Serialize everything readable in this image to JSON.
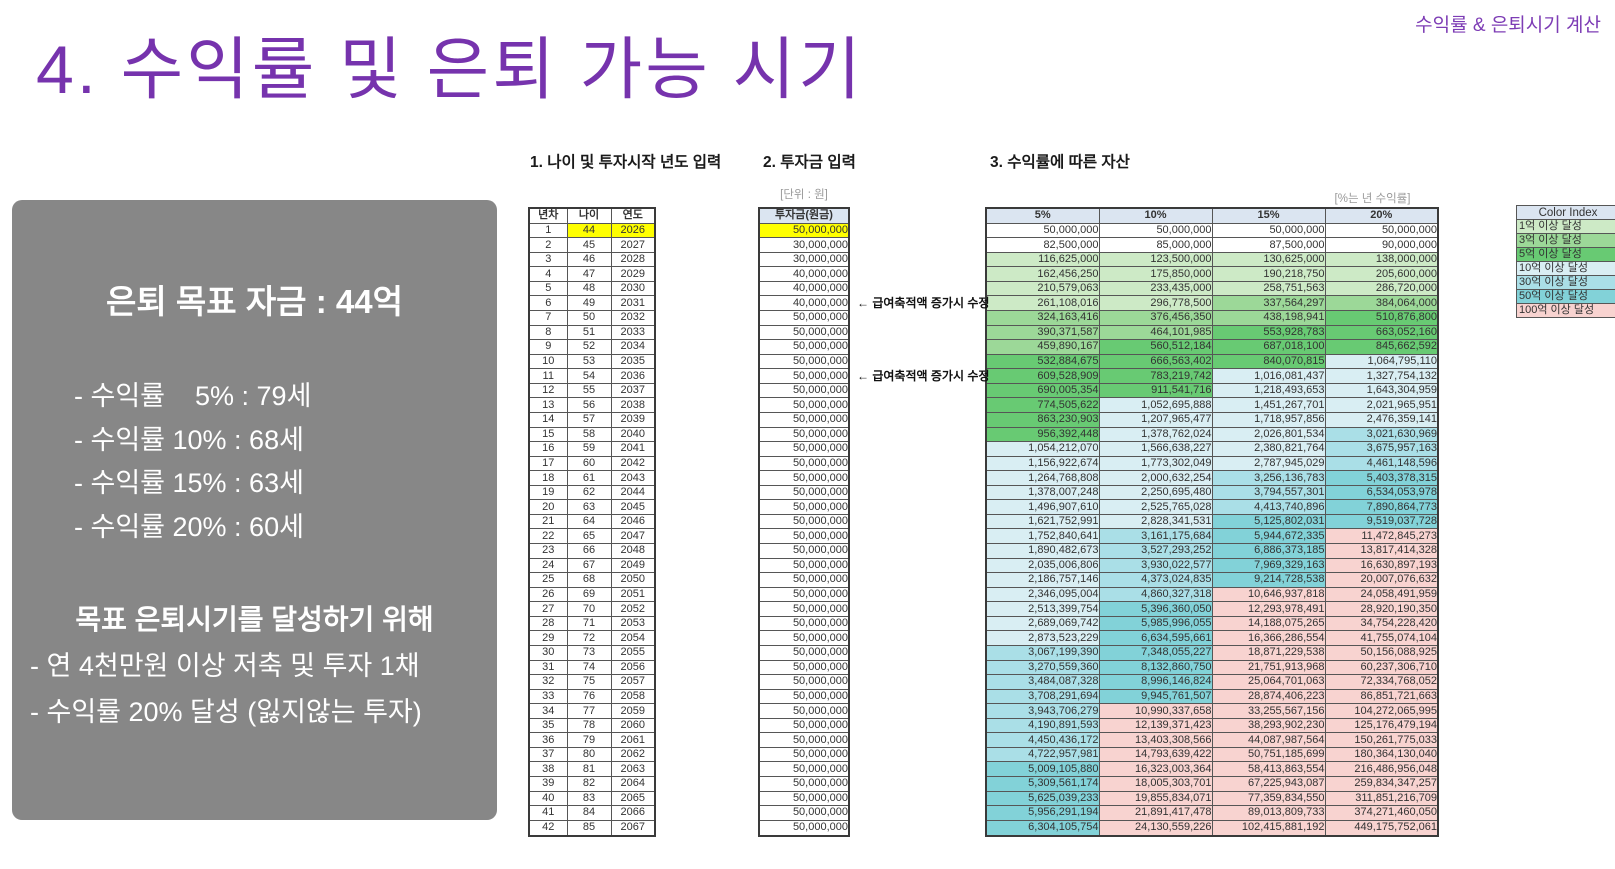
{
  "slide": {
    "title": "4. 수익률 및 은퇴 가능 시기",
    "corner_note": "수익률 & 은퇴시기 계산",
    "accent_color": "#7633ad"
  },
  "summary_box": {
    "title": "은퇴 목표 자금 : 44억",
    "rate_lines": [
      "- 수익률    5% : 79세",
      "- 수익률 10% : 68세",
      "- 수익률 15% : 63세",
      "- 수익률 20% : 60세"
    ],
    "goal_title": "목표 은퇴시기를 달성하기 위해",
    "goal_lines": [
      "- 연 4천만원 이상 저축 및 투자 1채",
      "- 수익률 20% 달성 (잃지않는 투자)"
    ]
  },
  "sections": {
    "s1": "1. 나이 및 투자시작 년도 입력",
    "s2": "2. 투자금 입력",
    "s3": "3. 수익률에 따른 자산"
  },
  "notes": {
    "unit": "[단위 : 원]",
    "percent": "[%는 년 수익률]",
    "annotation": "← 급여축적액 증가시 수정"
  },
  "age_table": {
    "columns": [
      "년차",
      "나이",
      "연도"
    ],
    "highlight_color": "#ffff00",
    "rows": [
      [
        1,
        44,
        2026
      ],
      [
        2,
        45,
        2027
      ],
      [
        3,
        46,
        2028
      ],
      [
        4,
        47,
        2029
      ],
      [
        5,
        48,
        2030
      ],
      [
        6,
        49,
        2031
      ],
      [
        7,
        50,
        2032
      ],
      [
        8,
        51,
        2033
      ],
      [
        9,
        52,
        2034
      ],
      [
        10,
        53,
        2035
      ],
      [
        11,
        54,
        2036
      ],
      [
        12,
        55,
        2037
      ],
      [
        13,
        56,
        2038
      ],
      [
        14,
        57,
        2039
      ],
      [
        15,
        58,
        2040
      ],
      [
        16,
        59,
        2041
      ],
      [
        17,
        60,
        2042
      ],
      [
        18,
        61,
        2043
      ],
      [
        19,
        62,
        2044
      ],
      [
        20,
        63,
        2045
      ],
      [
        21,
        64,
        2046
      ],
      [
        22,
        65,
        2047
      ],
      [
        23,
        66,
        2048
      ],
      [
        24,
        67,
        2049
      ],
      [
        25,
        68,
        2050
      ],
      [
        26,
        69,
        2051
      ],
      [
        27,
        70,
        2052
      ],
      [
        28,
        71,
        2053
      ],
      [
        29,
        72,
        2054
      ],
      [
        30,
        73,
        2055
      ],
      [
        31,
        74,
        2056
      ],
      [
        32,
        75,
        2057
      ],
      [
        33,
        76,
        2058
      ],
      [
        34,
        77,
        2059
      ],
      [
        35,
        78,
        2060
      ],
      [
        36,
        79,
        2061
      ],
      [
        37,
        80,
        2062
      ],
      [
        38,
        81,
        2063
      ],
      [
        39,
        82,
        2064
      ],
      [
        40,
        83,
        2065
      ],
      [
        41,
        84,
        2066
      ],
      [
        42,
        85,
        2067
      ]
    ]
  },
  "invest_table": {
    "header": "투자금(원금)",
    "highlight_color": "#ffff00",
    "values": [
      "50,000,000",
      "30,000,000",
      "30,000,000",
      "40,000,000",
      "40,000,000",
      "40,000,000",
      "50,000,000",
      "50,000,000",
      "50,000,000",
      "50,000,000",
      "50,000,000",
      "50,000,000",
      "50,000,000",
      "50,000,000",
      "50,000,000",
      "50,000,000",
      "50,000,000",
      "50,000,000",
      "50,000,000",
      "50,000,000",
      "50,000,000",
      "50,000,000",
      "50,000,000",
      "50,000,000",
      "50,000,000",
      "50,000,000",
      "50,000,000",
      "50,000,000",
      "50,000,000",
      "50,000,000",
      "50,000,000",
      "50,000,000",
      "50,000,000",
      "50,000,000",
      "50,000,000",
      "50,000,000",
      "50,000,000",
      "50,000,000",
      "50,000,000",
      "50,000,000",
      "50,000,000",
      "50,000,000"
    ],
    "annotation_rows": [
      5,
      10
    ]
  },
  "asset_table": {
    "headers": [
      "5%",
      "10%",
      "15%",
      "20%"
    ],
    "rows": [
      [
        "50,000,000",
        "50,000,000",
        "50,000,000",
        "50,000,000"
      ],
      [
        "82,500,000",
        "85,000,000",
        "87,500,000",
        "90,000,000"
      ],
      [
        "116,625,000",
        "123,500,000",
        "130,625,000",
        "138,000,000"
      ],
      [
        "162,456,250",
        "175,850,000",
        "190,218,750",
        "205,600,000"
      ],
      [
        "210,579,063",
        "233,435,000",
        "258,751,563",
        "286,720,000"
      ],
      [
        "261,108,016",
        "296,778,500",
        "337,564,297",
        "384,064,000"
      ],
      [
        "324,163,416",
        "376,456,350",
        "438,198,941",
        "510,876,800"
      ],
      [
        "390,371,587",
        "464,101,985",
        "553,928,783",
        "663,052,160"
      ],
      [
        "459,890,167",
        "560,512,184",
        "687,018,100",
        "845,662,592"
      ],
      [
        "532,884,675",
        "666,563,402",
        "840,070,815",
        "1,064,795,110"
      ],
      [
        "609,528,909",
        "783,219,742",
        "1,016,081,437",
        "1,327,754,132"
      ],
      [
        "690,005,354",
        "911,541,716",
        "1,218,493,653",
        "1,643,304,959"
      ],
      [
        "774,505,622",
        "1,052,695,888",
        "1,451,267,701",
        "2,021,965,951"
      ],
      [
        "863,230,903",
        "1,207,965,477",
        "1,718,957,856",
        "2,476,359,141"
      ],
      [
        "956,392,448",
        "1,378,762,024",
        "2,026,801,534",
        "3,021,630,969"
      ],
      [
        "1,054,212,070",
        "1,566,638,227",
        "2,380,821,764",
        "3,675,957,163"
      ],
      [
        "1,156,922,674",
        "1,773,302,049",
        "2,787,945,029",
        "4,461,148,596"
      ],
      [
        "1,264,768,808",
        "2,000,632,254",
        "3,256,136,783",
        "5,403,378,315"
      ],
      [
        "1,378,007,248",
        "2,250,695,480",
        "3,794,557,301",
        "6,534,053,978"
      ],
      [
        "1,496,907,610",
        "2,525,765,028",
        "4,413,740,896",
        "7,890,864,773"
      ],
      [
        "1,621,752,991",
        "2,828,341,531",
        "5,125,802,031",
        "9,519,037,728"
      ],
      [
        "1,752,840,641",
        "3,161,175,684",
        "5,944,672,335",
        "11,472,845,273"
      ],
      [
        "1,890,482,673",
        "3,527,293,252",
        "6,886,373,185",
        "13,817,414,328"
      ],
      [
        "2,035,006,806",
        "3,930,022,577",
        "7,969,329,163",
        "16,630,897,193"
      ],
      [
        "2,186,757,146",
        "4,373,024,835",
        "9,214,728,538",
        "20,007,076,632"
      ],
      [
        "2,346,095,004",
        "4,860,327,318",
        "10,646,937,818",
        "24,058,491,959"
      ],
      [
        "2,513,399,754",
        "5,396,360,050",
        "12,293,978,491",
        "28,920,190,350"
      ],
      [
        "2,689,069,742",
        "5,985,996,055",
        "14,188,075,265",
        "34,754,228,420"
      ],
      [
        "2,873,523,229",
        "6,634,595,661",
        "16,366,286,554",
        "41,755,074,104"
      ],
      [
        "3,067,199,390",
        "7,348,055,227",
        "18,871,229,538",
        "50,156,088,925"
      ],
      [
        "3,270,559,360",
        "8,132,860,750",
        "21,751,913,968",
        "60,237,306,710"
      ],
      [
        "3,484,087,328",
        "8,996,146,824",
        "25,064,701,063",
        "72,334,768,052"
      ],
      [
        "3,708,291,694",
        "9,945,761,507",
        "28,874,406,223",
        "86,851,721,663"
      ],
      [
        "3,943,706,279",
        "10,990,337,658",
        "33,255,567,156",
        "104,272,065,995"
      ],
      [
        "4,190,891,593",
        "12,139,371,423",
        "38,293,902,230",
        "125,176,479,194"
      ],
      [
        "4,450,436,172",
        "13,403,308,566",
        "44,087,987,564",
        "150,261,775,033"
      ],
      [
        "4,722,957,981",
        "14,793,639,422",
        "50,751,185,699",
        "180,364,130,040"
      ],
      [
        "5,009,105,880",
        "16,323,003,364",
        "58,413,863,554",
        "216,486,956,048"
      ],
      [
        "5,309,561,174",
        "18,005,303,701",
        "67,225,943,087",
        "259,834,347,257"
      ],
      [
        "5,625,039,233",
        "19,855,834,071",
        "77,359,834,550",
        "311,851,216,709"
      ],
      [
        "5,956,291,194",
        "21,891,417,478",
        "89,013,809,733",
        "374,271,460,050"
      ],
      [
        "6,304,105,754",
        "24,130,559,226",
        "102,415,881,192",
        "449,175,752,061"
      ]
    ]
  },
  "legend": {
    "header": "Color Index",
    "items": [
      {
        "label": "1억 이상 달성",
        "threshold": 100000000,
        "color": "#cdeac6"
      },
      {
        "label": "3억 이상 달성",
        "threshold": 300000000,
        "color": "#9cd898"
      },
      {
        "label": "5억 이상 달성",
        "threshold": 500000000,
        "color": "#68ca73"
      },
      {
        "label": "10억 이상 달성",
        "threshold": 1000000000,
        "color": "#d9eef3"
      },
      {
        "label": "30억 이상 달성",
        "threshold": 3000000000,
        "color": "#aadfe7"
      },
      {
        "label": "50억 이상 달성",
        "threshold": 5000000000,
        "color": "#82d2d8"
      },
      {
        "label": "100억 이상 달성",
        "threshold": 10000000000,
        "color": "#f8d3d0"
      }
    ]
  }
}
